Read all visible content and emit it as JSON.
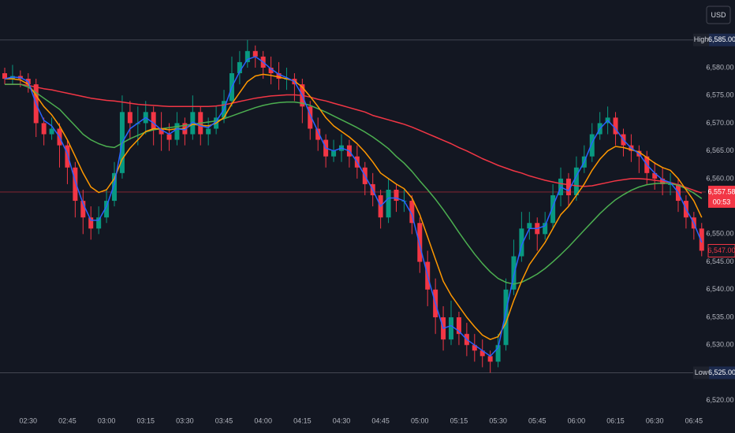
{
  "chart_data": {
    "type": "candlestick",
    "currency": "USD",
    "up_color": "#089981",
    "down_color": "#f23645",
    "categories": [
      null,
      null,
      null,
      "02:30",
      null,
      null,
      null,
      null,
      "02:45",
      null,
      null,
      null,
      null,
      "03:00",
      null,
      null,
      null,
      null,
      "03:15",
      null,
      null,
      null,
      null,
      "03:30",
      null,
      null,
      null,
      null,
      "03:45",
      null,
      null,
      null,
      null,
      "04:00",
      null,
      null,
      null,
      null,
      "04:15",
      null,
      null,
      null,
      null,
      "04:30",
      null,
      null,
      null,
      null,
      "04:45",
      null,
      null,
      null,
      null,
      "05:00",
      null,
      null,
      null,
      null,
      "05:15",
      null,
      null,
      null,
      null,
      "05:30",
      null,
      null,
      null,
      null,
      "05:45",
      null,
      null,
      null,
      null,
      "06:00",
      null,
      null,
      null,
      null,
      "06:15",
      null,
      null,
      null,
      null,
      "06:30",
      null,
      null,
      null,
      null,
      "06:45",
      null
    ],
    "ohlc": [
      [
        6579,
        6580,
        6577,
        6578
      ],
      [
        6578,
        6580.5,
        6577,
        6578.5
      ],
      [
        6578.5,
        6579.5,
        6576.5,
        6578
      ],
      [
        6578,
        6579,
        6575.5,
        6577
      ],
      [
        6577,
        6578,
        6567.5,
        6570
      ],
      [
        6570,
        6571,
        6566,
        6568
      ],
      [
        6568,
        6571,
        6567,
        6569
      ],
      [
        6569,
        6570,
        6562,
        6566
      ],
      [
        6566,
        6567,
        6559,
        6562
      ],
      [
        6562,
        6563,
        6553,
        6556
      ],
      [
        6556,
        6558,
        6550,
        6553
      ],
      [
        6553,
        6555,
        6549,
        6551
      ],
      [
        6551,
        6555,
        6550,
        6553
      ],
      [
        6553,
        6558,
        6552,
        6556
      ],
      [
        6556,
        6563,
        6555,
        6561
      ],
      [
        6561,
        6575,
        6560,
        6572
      ],
      [
        6572,
        6574,
        6567,
        6570
      ],
      [
        6570,
        6573,
        6566,
        6570
      ],
      [
        6570,
        6574,
        6568,
        6572
      ],
      [
        6572,
        6573,
        6566,
        6569
      ],
      [
        6569,
        6572,
        6565,
        6568
      ],
      [
        6568,
        6570,
        6565,
        6567
      ],
      [
        6567,
        6572,
        6566,
        6570
      ],
      [
        6570,
        6571,
        6566,
        6568
      ],
      [
        6568,
        6575,
        6567,
        6572
      ],
      [
        6572,
        6573,
        6566,
        6568
      ],
      [
        6568,
        6571,
        6566,
        6569
      ],
      [
        6569,
        6573,
        6568,
        6571
      ],
      [
        6571,
        6576,
        6570,
        6574
      ],
      [
        6574,
        6582,
        6573,
        6579
      ],
      [
        6579,
        6583,
        6577,
        6581
      ],
      [
        6581,
        6585,
        6580,
        6583
      ],
      [
        6583,
        6584,
        6580,
        6582
      ],
      [
        6582,
        6583,
        6578,
        6580
      ],
      [
        6580,
        6582,
        6577,
        6579
      ],
      [
        6579,
        6581,
        6576,
        6578
      ],
      [
        6578,
        6580,
        6576,
        6578
      ],
      [
        6578,
        6579,
        6574,
        6577
      ],
      [
        6577,
        6578,
        6570,
        6573
      ],
      [
        6573,
        6574,
        6567,
        6569
      ],
      [
        6569,
        6571,
        6565,
        6567
      ],
      [
        6567,
        6568,
        6562,
        6564
      ],
      [
        6564,
        6567,
        6563,
        6565
      ],
      [
        6565,
        6568,
        6563,
        6566
      ],
      [
        6566,
        6567,
        6562,
        6564
      ],
      [
        6564,
        6566,
        6560,
        6562
      ],
      [
        6562,
        6563,
        6557,
        6559
      ],
      [
        6559,
        6561,
        6555,
        6557
      ],
      [
        6557,
        6558,
        6551,
        6553
      ],
      [
        6553,
        6560,
        6552,
        6558
      ],
      [
        6558,
        6559,
        6554,
        6556
      ],
      [
        6556,
        6558,
        6554,
        6556
      ],
      [
        6556,
        6557,
        6550,
        6552
      ],
      [
        6552,
        6553,
        6543,
        6545
      ],
      [
        6545,
        6547,
        6537,
        6540
      ],
      [
        6540,
        6542,
        6532,
        6535
      ],
      [
        6535,
        6537,
        6529,
        6531
      ],
      [
        6531,
        6538,
        6530,
        6535
      ],
      [
        6535,
        6536,
        6530,
        6532
      ],
      [
        6532,
        6534,
        6528,
        6530
      ],
      [
        6530,
        6532,
        6527,
        6529
      ],
      [
        6529,
        6531,
        6526,
        6528
      ],
      [
        6528,
        6529,
        6525,
        6527
      ],
      [
        6527,
        6532,
        6526,
        6530
      ],
      [
        6530,
        6542,
        6529,
        6540
      ],
      [
        6540,
        6549,
        6539,
        6546
      ],
      [
        6546,
        6554,
        6545,
        6551
      ],
      [
        6551,
        6554,
        6549,
        6552
      ],
      [
        6552,
        6553,
        6547,
        6550
      ],
      [
        6550,
        6554,
        6549,
        6552
      ],
      [
        6552,
        6559,
        6551,
        6557
      ],
      [
        6557,
        6562,
        6555,
        6560
      ],
      [
        6560,
        6561,
        6555,
        6557
      ],
      [
        6557,
        6564,
        6556,
        6562
      ],
      [
        6562,
        6566,
        6561,
        6564
      ],
      [
        6564,
        6570,
        6563,
        6568
      ],
      [
        6568,
        6572,
        6567,
        6570
      ],
      [
        6570,
        6573,
        6568,
        6571
      ],
      [
        6571,
        6572,
        6566,
        6568
      ],
      [
        6568,
        6569,
        6564,
        6566
      ],
      [
        6566,
        6568,
        6563,
        6565
      ],
      [
        6565,
        6566,
        6561,
        6564
      ],
      [
        6564,
        6565,
        6559,
        6561
      ],
      [
        6561,
        6563,
        6558,
        6560
      ],
      [
        6560,
        6562,
        6557,
        6559
      ],
      [
        6559,
        6561,
        6557,
        6559
      ],
      [
        6559,
        6560,
        6554,
        6556
      ],
      [
        6556,
        6557,
        6551,
        6553
      ],
      [
        6553,
        6554,
        6549,
        6551
      ],
      [
        6551,
        6552,
        6546,
        6547
      ]
    ],
    "lines": [
      {
        "color": "#f23645",
        "values": [
          6577,
          6577,
          6577,
          6576.8,
          6576.5,
          6576.2,
          6576,
          6575.7,
          6575.4,
          6575.1,
          6574.8,
          6574.5,
          6574.3,
          6574.1,
          6574,
          6573.8,
          6573.6,
          6573.4,
          6573.3,
          6573.2,
          6573.1,
          6573,
          6573,
          6573,
          6573,
          6573,
          6573,
          6573.1,
          6573.3,
          6573.6,
          6573.9,
          6574.2,
          6574.5,
          6574.7,
          6574.9,
          6575,
          6575.1,
          6575.1,
          6575,
          6574.7,
          6574.3,
          6574,
          6573.6,
          6573.2,
          6572.8,
          6572.4,
          6572,
          6571.4,
          6571,
          6570.6,
          6570.2,
          6569.8,
          6569.3,
          6568.7,
          6568.1,
          6567.5,
          6566.9,
          6566.3,
          6565.6,
          6565,
          6564.3,
          6563.6,
          6563,
          6562.4,
          6561.9,
          6561.4,
          6561,
          6560.5,
          6560.1,
          6559.7,
          6559.4,
          6559.1,
          6558.9,
          6558.7,
          6558.6,
          6558.7,
          6559,
          6559.3,
          6559.6,
          6559.8,
          6560,
          6560,
          6559.9,
          6559.7,
          6559.5,
          6559.3,
          6558.9,
          6558.4,
          6557.9,
          6557.4
        ]
      },
      {
        "color": "#4caf50",
        "values": [
          6577,
          6577,
          6577,
          6576.5,
          6575.5,
          6574.5,
          6573.5,
          6572.5,
          6571,
          6569.5,
          6568,
          6567,
          6566.3,
          6565.8,
          6565.6,
          6566.4,
          6567.2,
          6567.8,
          6568.4,
          6568.8,
          6569,
          6569.2,
          6569.4,
          6569.6,
          6569.8,
          6570,
          6570.2,
          6570.4,
          6570.8,
          6571.3,
          6571.8,
          6572.3,
          6572.8,
          6573.2,
          6573.5,
          6573.7,
          6573.8,
          6573.8,
          6573.6,
          6573.2,
          6572.6,
          6572,
          6571.3,
          6570.6,
          6569.9,
          6569.2,
          6568.4,
          6567.5,
          6566.5,
          6565.4,
          6564,
          6562.8,
          6561.3,
          6559.6,
          6558,
          6556.3,
          6554.4,
          6552.4,
          6550.3,
          6548.3,
          6546.4,
          6544.7,
          6543.2,
          6542,
          6541.3,
          6541,
          6541.3,
          6542,
          6542.8,
          6543.8,
          6545,
          6546.3,
          6547.7,
          6549.2,
          6550.7,
          6552.2,
          6553.7,
          6555,
          6556.2,
          6557.1,
          6557.9,
          6558.5,
          6558.9,
          6559.1,
          6559.2,
          6559.1,
          6558.8,
          6558.2,
          6557.4,
          6556.4
        ]
      },
      {
        "color": "#ff9800",
        "values": [
          6578,
          6578,
          6577.8,
          6577,
          6575,
          6573,
          6571.5,
          6569.5,
          6567,
          6564,
          6561,
          6558.5,
          6557.5,
          6558,
          6560,
          6563.5,
          6565.5,
          6567,
          6568.5,
          6569,
          6569,
          6568.8,
          6569,
          6569,
          6569.8,
          6569.6,
          6569.5,
          6570,
          6571,
          6573.5,
          6575.5,
          6577.5,
          6578.5,
          6578.8,
          6578.6,
          6578.3,
          6578,
          6577.6,
          6576.5,
          6574.8,
          6573,
          6571,
          6569.5,
          6568.5,
          6567.5,
          6566.3,
          6564.8,
          6563,
          6561,
          6560,
          6559,
          6558.2,
          6556.5,
          6553.5,
          6549.5,
          6545.5,
          6541.5,
          6539,
          6537,
          6535,
          6533.3,
          6531.8,
          6531,
          6531.5,
          6534,
          6538,
          6541.5,
          6544.5,
          6546.5,
          6548.5,
          6551,
          6553.5,
          6555,
          6557,
          6559,
          6561.5,
          6563.5,
          6565,
          6565.8,
          6565.6,
          6565.2,
          6564.8,
          6563.8,
          6562.8,
          6562,
          6561.5,
          6560,
          6558,
          6556,
          6553
        ]
      },
      {
        "color": "#2962ff",
        "values": [
          6578,
          6578.3,
          6578.2,
          6577.5,
          6573.5,
          6570.5,
          6569.5,
          6567.5,
          6564.5,
          6559.5,
          6555.5,
          6552.5,
          6552.5,
          6555,
          6559,
          6566.5,
          6569,
          6570,
          6571,
          6570,
          6568.8,
          6568,
          6569,
          6568.8,
          6570.2,
          6569.5,
          6569.2,
          6570.3,
          6572.5,
          6576.5,
          6579.3,
          6581.5,
          6582,
          6581,
          6579.8,
          6578.8,
          6578.2,
          6577.5,
          6575,
          6571.5,
          6568.5,
          6565.5,
          6565,
          6565.5,
          6565,
          6563,
          6560.5,
          6558,
          6555,
          6556.5,
          6556.5,
          6556,
          6553.5,
          6548,
          6542.5,
          6537.5,
          6533,
          6533.5,
          6532.5,
          6531,
          6530,
          6529,
          6528,
          6529.5,
          6536,
          6542.5,
          6548,
          6551,
          6551,
          6551.5,
          6555,
          6558.5,
          6557.8,
          6560.5,
          6563,
          6566.5,
          6569,
          6570.5,
          6569,
          6567,
          6565.5,
          6564.5,
          6562.5,
          6561,
          6559.8,
          6559.3,
          6557.5,
          6554.5,
          6552,
          6548.5
        ]
      }
    ],
    "ylim": [
      6518.4,
      6592.2
    ],
    "yticks": [
      {
        "value": 6520,
        "label": "6,520.00"
      },
      {
        "value": 6530,
        "label": "6,530.00"
      },
      {
        "value": 6535,
        "label": "6,535.00"
      },
      {
        "value": 6540,
        "label": "6,540.00"
      },
      {
        "value": 6545,
        "label": "6,545.00"
      },
      {
        "value": 6550,
        "label": "6,550.00"
      },
      {
        "value": 6560,
        "label": "6,560.00"
      },
      {
        "value": 6565,
        "label": "6,565.00"
      },
      {
        "value": 6570,
        "label": "6,570.00"
      },
      {
        "value": 6575,
        "label": "6,575.00"
      },
      {
        "value": 6580,
        "label": "6,580.00"
      }
    ],
    "high": {
      "label": "High",
      "value": 6585,
      "value_label": "6,585.00"
    },
    "low": {
      "label": "Low",
      "value": 6525,
      "value_label": "6,525.00"
    },
    "last_price": {
      "value": 6557.58,
      "label": "6,557.58",
      "countdown": "00:53"
    },
    "close_marker": {
      "value": 6547,
      "label": "6,547.00"
    }
  }
}
